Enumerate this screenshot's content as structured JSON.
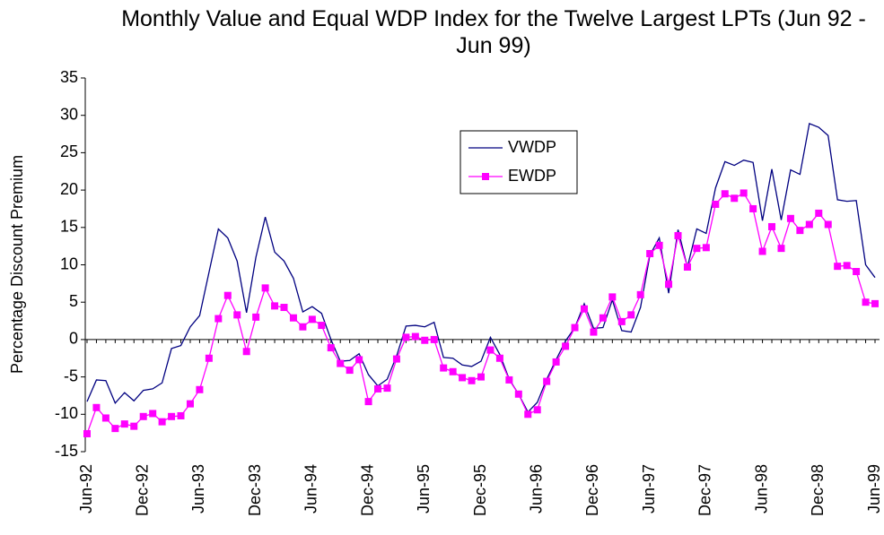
{
  "chart_data": {
    "type": "line",
    "title": "Monthly Value and Equal WDP Index for the Twelve Largest LPTs (Jun 92 - Jun 99)",
    "y_label": "Percentage Discount Premium",
    "categories": [
      "Jun-92",
      null,
      null,
      null,
      null,
      null,
      "Dec-92",
      null,
      null,
      null,
      null,
      null,
      "Jun-93",
      null,
      null,
      null,
      null,
      null,
      "Dec-93",
      null,
      null,
      null,
      null,
      null,
      "Jun-94",
      null,
      null,
      null,
      null,
      null,
      "Dec-94",
      null,
      null,
      null,
      null,
      null,
      "Jun-95",
      null,
      null,
      null,
      null,
      null,
      "Dec-95",
      null,
      null,
      null,
      null,
      null,
      "Jun-96",
      null,
      null,
      null,
      null,
      null,
      "Dec-96",
      null,
      null,
      null,
      null,
      null,
      "Jun-97",
      null,
      null,
      null,
      null,
      null,
      "Dec-97",
      null,
      null,
      null,
      null,
      null,
      "Jun-98",
      null,
      null,
      null,
      null,
      null,
      "Dec-98",
      null,
      null,
      null,
      null,
      null,
      "Jun-99"
    ],
    "series": [
      {
        "name": "VWDP",
        "color": "#000080",
        "values": [
          -8.3,
          -5.4,
          -5.5,
          -8.5,
          -7.1,
          -8.2,
          -6.8,
          -6.6,
          -5.8,
          -1.2,
          -0.8,
          1.7,
          3.2,
          9.0,
          14.8,
          13.6,
          10.5,
          3.6,
          11.0,
          16.4,
          11.7,
          10.5,
          8.2,
          3.7,
          4.4,
          3.5,
          0.0,
          -2.9,
          -2.8,
          -1.9,
          -4.7,
          -6.2,
          -5.3,
          -2.2,
          1.8,
          1.9,
          1.7,
          2.3,
          -2.4,
          -2.5,
          -3.4,
          -3.6,
          -2.9,
          0.3,
          -2.0,
          -5.3,
          -7.3,
          -9.7,
          -8.4,
          -5.3,
          -2.7,
          -0.2,
          1.6,
          4.8,
          1.5,
          1.6,
          5.3,
          1.2,
          1.0,
          4.3,
          11.3,
          13.6,
          6.2,
          14.7,
          9.7,
          14.8,
          14.2,
          20.3,
          23.8,
          23.3,
          24.0,
          23.7,
          15.9,
          22.8,
          16.0,
          22.7,
          22.1,
          28.9,
          28.4,
          27.3,
          18.7,
          18.5,
          18.6,
          10.0,
          8.3
        ]
      },
      {
        "name": "EWDP",
        "color": "#ff00ff",
        "marker": "square",
        "values": [
          -12.6,
          -9.1,
          -10.5,
          -11.9,
          -11.3,
          -11.6,
          -10.3,
          -9.9,
          -11.0,
          -10.3,
          -10.2,
          -8.6,
          -6.7,
          -2.5,
          2.8,
          5.9,
          3.3,
          -1.6,
          3.0,
          6.9,
          4.5,
          4.3,
          2.9,
          1.7,
          2.7,
          1.9,
          -1.1,
          -3.2,
          -4.1,
          -2.7,
          -8.3,
          -6.6,
          -6.5,
          -2.6,
          0.3,
          0.4,
          -0.1,
          0.0,
          -3.8,
          -4.3,
          -5.1,
          -5.5,
          -5.0,
          -1.4,
          -2.5,
          -5.4,
          -7.3,
          -10.0,
          -9.4,
          -5.6,
          -3.0,
          -0.9,
          1.6,
          4.1,
          1.0,
          2.9,
          5.7,
          2.4,
          3.3,
          6.0,
          11.5,
          12.6,
          7.4,
          13.9,
          9.7,
          12.2,
          12.3,
          18.1,
          19.5,
          18.9,
          19.6,
          17.5,
          11.8,
          15.1,
          12.2,
          16.2,
          14.6,
          15.4,
          16.9,
          15.4,
          9.8,
          9.9,
          9.1,
          5.0,
          4.8
        ]
      }
    ],
    "ylim": [
      -15,
      35
    ],
    "yticks": [
      -15,
      -10,
      -5,
      0,
      5,
      10,
      15,
      20,
      25,
      30,
      35
    ],
    "grid": false
  }
}
